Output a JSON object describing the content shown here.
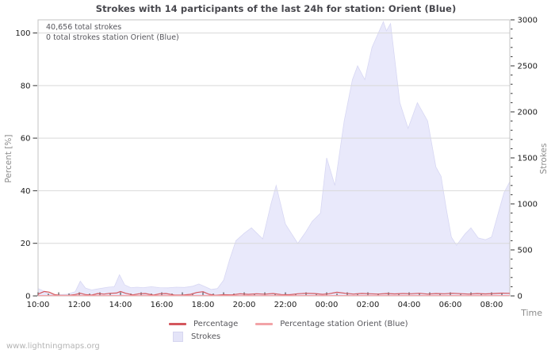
{
  "annotations": {
    "total_strokes": "40,656 total strokes",
    "station_total": "0 total strokes station Orient (Blue)"
  },
  "watermark": "www.lightningmaps.org",
  "colors": {
    "area_fill": "#e9e9fb",
    "area_edge": "#d7d7f3",
    "percentage_line": "#d4575d",
    "station_line": "#f2a3a7",
    "grid": "#d9d9d9",
    "border": "#c3c3c3",
    "tick": "#333333",
    "tick_text": "#1a1a1a",
    "axis_name_text": "#8c8c8c"
  },
  "chart_data": {
    "type": "area",
    "title": "Strokes with 14 participants of the last 24h for station: Orient (Blue)",
    "grid": "horizontal-only",
    "legend_position": "bottom-center",
    "x_axis": {
      "label": "Time",
      "tick_labels": [
        "10:00",
        "12:00",
        "14:00",
        "16:00",
        "18:00",
        "20:00",
        "22:00",
        "00:00",
        "02:00",
        "04:00",
        "06:00",
        "08:00"
      ],
      "hours_per_px": "2h major ticks, 1h / 0.5h minor ticks",
      "range_hours": [
        0,
        22.88
      ]
    },
    "y_left": {
      "label": "Percent  [%]",
      "ticks": [
        0,
        20,
        40,
        60,
        80,
        100
      ],
      "range": [
        0,
        105
      ]
    },
    "y_right": {
      "label": "Strokes",
      "ticks": [
        0,
        500,
        1000,
        1500,
        2000,
        2500,
        3000
      ],
      "minor_step": 100,
      "range": [
        0,
        3000
      ]
    },
    "series": [
      {
        "name": "Percentage",
        "type": "line",
        "axis": "left",
        "color": "#d4575d",
        "points": [
          [
            0,
            0.7
          ],
          [
            0.3,
            1.7
          ],
          [
            0.55,
            1.4
          ],
          [
            0.8,
            0.5
          ],
          [
            1.1,
            0.2
          ],
          [
            1.5,
            0.25
          ],
          [
            1.8,
            0.5
          ],
          [
            2.05,
            1.0
          ],
          [
            2.3,
            0.5
          ],
          [
            2.6,
            0.3
          ],
          [
            2.9,
            0.9
          ],
          [
            3.2,
            0.7
          ],
          [
            3.5,
            1.0
          ],
          [
            3.8,
            1.1
          ],
          [
            4.0,
            1.7
          ],
          [
            4.25,
            1.0
          ],
          [
            4.6,
            0.4
          ],
          [
            4.9,
            0.8
          ],
          [
            5.2,
            0.9
          ],
          [
            5.6,
            0.3
          ],
          [
            5.9,
            0.8
          ],
          [
            6.2,
            0.9
          ],
          [
            6.6,
            0.35
          ],
          [
            7.0,
            0.3
          ],
          [
            7.4,
            0.6
          ],
          [
            7.7,
            1.3
          ],
          [
            8.0,
            1.6
          ],
          [
            8.3,
            0.6
          ],
          [
            8.6,
            0.25
          ],
          [
            9.0,
            0.45
          ],
          [
            9.4,
            0.4
          ],
          [
            9.8,
            0.8
          ],
          [
            10.2,
            0.6
          ],
          [
            10.6,
            0.8
          ],
          [
            11.0,
            0.65
          ],
          [
            11.4,
            0.9
          ],
          [
            11.8,
            0.5
          ],
          [
            12.2,
            0.45
          ],
          [
            12.6,
            0.8
          ],
          [
            13.0,
            1.0
          ],
          [
            13.4,
            0.9
          ],
          [
            13.8,
            0.6
          ],
          [
            14.1,
            0.8
          ],
          [
            14.5,
            1.4
          ],
          [
            14.9,
            1.0
          ],
          [
            15.3,
            0.7
          ],
          [
            15.7,
            0.95
          ],
          [
            16.1,
            0.8
          ],
          [
            16.5,
            0.7
          ],
          [
            16.9,
            0.9
          ],
          [
            17.3,
            0.75
          ],
          [
            17.7,
            0.9
          ],
          [
            18.1,
            0.8
          ],
          [
            18.5,
            1.0
          ],
          [
            18.9,
            0.7
          ],
          [
            19.3,
            0.9
          ],
          [
            19.7,
            0.8
          ],
          [
            20.1,
            1.0
          ],
          [
            20.5,
            0.85
          ],
          [
            20.9,
            0.7
          ],
          [
            21.3,
            0.9
          ],
          [
            21.7,
            0.75
          ],
          [
            22.1,
            0.9
          ],
          [
            22.5,
            1.05
          ],
          [
            22.88,
            1.0
          ]
        ]
      },
      {
        "name": "Percentage station Orient (Blue)",
        "type": "line",
        "axis": "left",
        "color": "#f2a3a7",
        "points": [
          [
            0,
            0.15
          ],
          [
            22.88,
            0.15
          ]
        ]
      },
      {
        "name": "Strokes",
        "type": "area",
        "axis": "right",
        "color": "#e9e9fb",
        "points": [
          [
            0,
            80
          ],
          [
            0.25,
            55
          ],
          [
            0.5,
            20
          ],
          [
            0.9,
            12
          ],
          [
            1.4,
            18
          ],
          [
            1.8,
            45
          ],
          [
            2.05,
            160
          ],
          [
            2.3,
            85
          ],
          [
            2.6,
            65
          ],
          [
            3.0,
            80
          ],
          [
            3.4,
            95
          ],
          [
            3.7,
            100
          ],
          [
            3.95,
            230
          ],
          [
            4.2,
            120
          ],
          [
            4.5,
            90
          ],
          [
            4.8,
            95
          ],
          [
            5.1,
            90
          ],
          [
            5.5,
            100
          ],
          [
            5.9,
            90
          ],
          [
            6.3,
            88
          ],
          [
            6.7,
            95
          ],
          [
            7.1,
            92
          ],
          [
            7.5,
            105
          ],
          [
            7.8,
            130
          ],
          [
            8.1,
            100
          ],
          [
            8.4,
            70
          ],
          [
            8.7,
            80
          ],
          [
            9.0,
            170
          ],
          [
            9.3,
            400
          ],
          [
            9.6,
            600
          ],
          [
            10.0,
            680
          ],
          [
            10.35,
            740
          ],
          [
            10.9,
            620
          ],
          [
            11.3,
            1000
          ],
          [
            11.55,
            1200
          ],
          [
            12.0,
            780
          ],
          [
            12.6,
            570
          ],
          [
            13.0,
            700
          ],
          [
            13.3,
            810
          ],
          [
            13.7,
            900
          ],
          [
            14.0,
            1500
          ],
          [
            14.4,
            1200
          ],
          [
            14.85,
            1900
          ],
          [
            15.25,
            2350
          ],
          [
            15.5,
            2500
          ],
          [
            15.85,
            2350
          ],
          [
            16.2,
            2700
          ],
          [
            16.75,
            2980
          ],
          [
            16.9,
            2880
          ],
          [
            17.1,
            2960
          ],
          [
            17.55,
            2100
          ],
          [
            17.95,
            1820
          ],
          [
            18.4,
            2100
          ],
          [
            18.9,
            1900
          ],
          [
            19.3,
            1400
          ],
          [
            19.55,
            1300
          ],
          [
            19.8,
            950
          ],
          [
            20.05,
            640
          ],
          [
            20.3,
            550
          ],
          [
            20.7,
            670
          ],
          [
            21.0,
            740
          ],
          [
            21.35,
            630
          ],
          [
            21.7,
            610
          ],
          [
            22.0,
            640
          ],
          [
            22.3,
            880
          ],
          [
            22.6,
            1120
          ],
          [
            22.88,
            1240
          ]
        ]
      }
    ]
  }
}
